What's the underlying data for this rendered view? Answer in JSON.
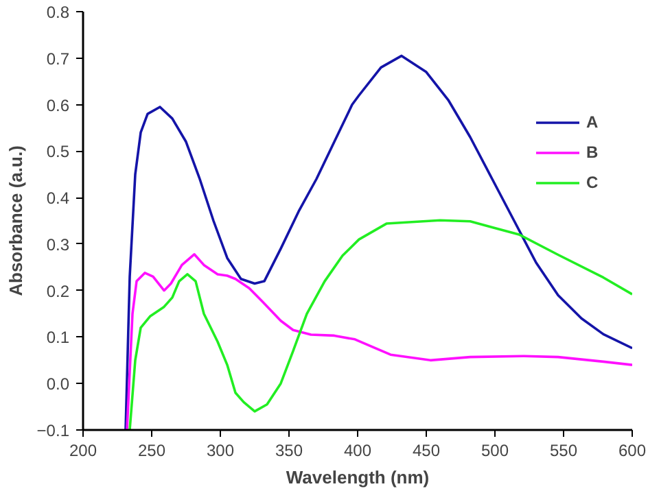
{
  "chart_data": {
    "type": "line",
    "xlabel": "Wavelength (nm)",
    "ylabel": "Absorbance (a.u.)",
    "xlim": [
      200,
      600
    ],
    "ylim": [
      -0.1,
      0.8
    ],
    "xticks": [
      200,
      250,
      300,
      350,
      400,
      450,
      500,
      550,
      600
    ],
    "yticks": [
      -0.1,
      {
        "value": 0,
        "label": "0.0"
      },
      0.1,
      0.2,
      0.3,
      0.4,
      0.5,
      0.6,
      0.7,
      0.8
    ],
    "grid": false,
    "legend": "right",
    "line_style": "solid",
    "marker": "none",
    "series": [
      {
        "name": "A",
        "color": "#1414a8",
        "x": [
          231,
          234,
          238,
          242,
          247,
          256,
          265,
          275,
          285,
          295,
          305,
          315,
          325,
          332,
          344,
          357,
          370,
          383,
          396,
          401,
          417,
          432,
          450,
          466,
          482,
          498,
          514,
          530,
          546,
          563,
          579,
          600
        ],
        "values": [
          -0.1,
          0.23,
          0.45,
          0.54,
          0.58,
          0.595,
          0.57,
          0.52,
          0.44,
          0.35,
          0.27,
          0.225,
          0.215,
          0.22,
          0.29,
          0.37,
          0.44,
          0.52,
          0.6,
          0.62,
          0.68,
          0.705,
          0.67,
          0.61,
          0.53,
          0.44,
          0.35,
          0.26,
          0.19,
          0.14,
          0.106,
          0.076
        ]
      },
      {
        "name": "B",
        "color": "#ff10ff",
        "x": [
          232,
          236,
          239,
          245,
          251,
          259,
          264,
          272,
          281,
          288,
          298,
          305,
          311,
          321,
          331,
          344,
          353,
          366,
          383,
          398,
          424,
          453,
          482,
          521,
          546,
          579,
          600
        ],
        "values": [
          -0.1,
          0.15,
          0.22,
          0.238,
          0.23,
          0.2,
          0.215,
          0.255,
          0.278,
          0.255,
          0.235,
          0.232,
          0.225,
          0.205,
          0.175,
          0.135,
          0.115,
          0.105,
          0.103,
          0.095,
          0.062,
          0.05,
          0.057,
          0.059,
          0.057,
          0.047,
          0.04
        ]
      },
      {
        "name": "C",
        "color": "#22ee22",
        "x": [
          234,
          238,
          242,
          249,
          259,
          265,
          270,
          276,
          282,
          288,
          298,
          305,
          311,
          317,
          325,
          334,
          344,
          353,
          363,
          376,
          389,
          401,
          421,
          460,
          482,
          498,
          518,
          546,
          579,
          600
        ],
        "values": [
          -0.1,
          0.05,
          0.12,
          0.145,
          0.165,
          0.185,
          0.22,
          0.235,
          0.22,
          0.15,
          0.09,
          0.04,
          -0.02,
          -0.04,
          -0.06,
          -0.045,
          0.0,
          0.07,
          0.15,
          0.22,
          0.275,
          0.31,
          0.344,
          0.351,
          0.349,
          0.336,
          0.32,
          0.277,
          0.228,
          0.192
        ]
      }
    ]
  }
}
